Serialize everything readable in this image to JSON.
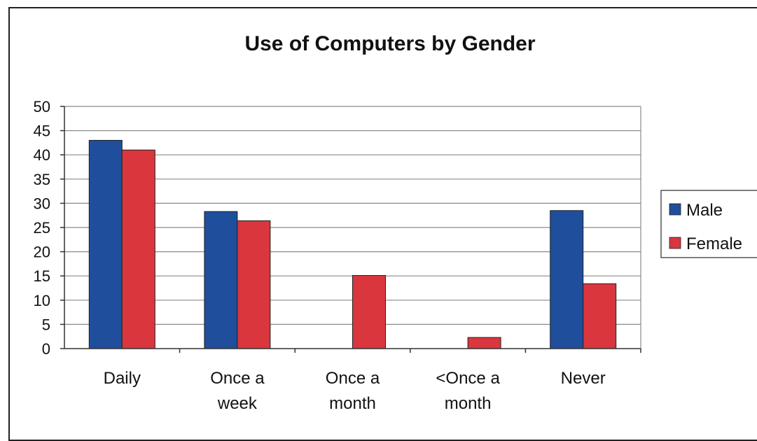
{
  "chart_data": {
    "type": "bar",
    "title": "Use of Computers by Gender",
    "xlabel": "",
    "ylabel": "",
    "ylim": [
      0,
      50
    ],
    "yticks": [
      0,
      5,
      10,
      15,
      20,
      25,
      30,
      35,
      40,
      45,
      50
    ],
    "grid": true,
    "legend_position": "right",
    "categories": [
      [
        "Daily"
      ],
      [
        "Once a",
        "week"
      ],
      [
        "Once a",
        "month"
      ],
      [
        "<Once a",
        "month"
      ],
      [
        "Never"
      ]
    ],
    "series": [
      {
        "name": "Male",
        "color": "#1f4e9c",
        "values": [
          43,
          28.3,
          0,
          0,
          28.5
        ]
      },
      {
        "name": "Female",
        "color": "#d9363e",
        "values": [
          41,
          26.4,
          15.1,
          2.3,
          13.4
        ]
      }
    ]
  }
}
